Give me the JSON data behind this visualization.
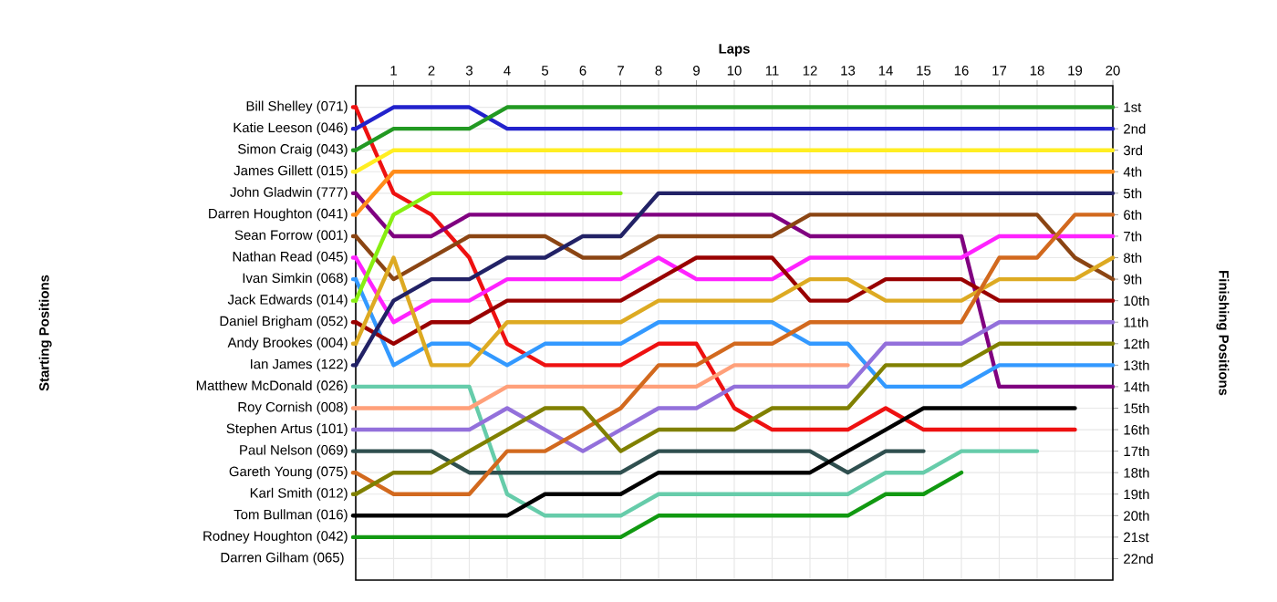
{
  "chart_data": {
    "type": "line",
    "xlabel": "Laps",
    "legend_title": "Starting Positions",
    "ylabel": "Finishing Positions",
    "legend": "left",
    "x": [
      0,
      1,
      2,
      3,
      4,
      5,
      6,
      7,
      8,
      9,
      10,
      11,
      12,
      13,
      14,
      15,
      16,
      17,
      18,
      19,
      20
    ],
    "xlim": [
      0,
      20
    ],
    "xticks": [
      1,
      2,
      3,
      4,
      5,
      6,
      7,
      8,
      9,
      10,
      11,
      12,
      13,
      14,
      15,
      16,
      17,
      18,
      19,
      20
    ],
    "ylim": [
      23,
      0
    ],
    "yticks": [
      {
        "value": 1,
        "label": "1st"
      },
      {
        "value": 2,
        "label": "2nd"
      },
      {
        "value": 3,
        "label": "3rd"
      },
      {
        "value": 4,
        "label": "4th"
      },
      {
        "value": 5,
        "label": "5th"
      },
      {
        "value": 6,
        "label": "6th"
      },
      {
        "value": 7,
        "label": "7th"
      },
      {
        "value": 8,
        "label": "8th"
      },
      {
        "value": 9,
        "label": "9th"
      },
      {
        "value": 10,
        "label": "10th"
      },
      {
        "value": 11,
        "label": "11th"
      },
      {
        "value": 12,
        "label": "12th"
      },
      {
        "value": 13,
        "label": "13th"
      },
      {
        "value": 14,
        "label": "14th"
      },
      {
        "value": 15,
        "label": "15th"
      },
      {
        "value": 16,
        "label": "16th"
      },
      {
        "value": 17,
        "label": "17th"
      },
      {
        "value": 18,
        "label": "18th"
      },
      {
        "value": 19,
        "label": "19th"
      },
      {
        "value": 20,
        "label": "20th"
      },
      {
        "value": 21,
        "label": "21st"
      },
      {
        "value": 22,
        "label": "22nd"
      }
    ],
    "grid": true,
    "annotations": [
      "Darren Gilham (065)"
    ],
    "series": [
      {
        "name": "Bill Shelley (071)",
        "color": "#ee1111",
        "values": [
          1,
          5,
          6,
          8,
          12,
          13,
          13,
          13,
          12,
          12,
          15,
          16,
          16,
          16,
          15,
          16,
          16,
          16,
          16,
          16,
          null
        ]
      },
      {
        "name": "Katie Leeson (046)",
        "color": "#2222cc",
        "values": [
          2,
          1,
          1,
          1,
          2,
          2,
          2,
          2,
          2,
          2,
          2,
          2,
          2,
          2,
          2,
          2,
          2,
          2,
          2,
          2,
          2
        ]
      },
      {
        "name": "Simon Craig (043)",
        "color": "#229922",
        "values": [
          3,
          2,
          2,
          2,
          1,
          1,
          1,
          1,
          1,
          1,
          1,
          1,
          1,
          1,
          1,
          1,
          1,
          1,
          1,
          1,
          1
        ]
      },
      {
        "name": "James Gillett (015)",
        "color": "#ffee22",
        "values": [
          4,
          3,
          3,
          3,
          3,
          3,
          3,
          3,
          3,
          3,
          3,
          3,
          3,
          3,
          3,
          3,
          3,
          3,
          3,
          3,
          3
        ]
      },
      {
        "name": "John Gladwin (777)",
        "color": "#800080",
        "values": [
          5,
          7,
          7,
          6,
          6,
          6,
          6,
          6,
          6,
          6,
          6,
          6,
          7,
          7,
          7,
          7,
          7,
          14,
          14,
          14,
          14
        ]
      },
      {
        "name": "Darren Houghton (041)",
        "color": "#ff8c1a",
        "values": [
          6,
          4,
          4,
          4,
          4,
          4,
          4,
          4,
          4,
          4,
          4,
          4,
          4,
          4,
          4,
          4,
          4,
          4,
          4,
          4,
          4
        ]
      },
      {
        "name": "Sean Forrow (001)",
        "color": "#8b4513",
        "values": [
          7,
          9,
          8,
          7,
          7,
          7,
          8,
          8,
          7,
          7,
          7,
          7,
          6,
          6,
          6,
          6,
          6,
          6,
          6,
          8,
          9
        ]
      },
      {
        "name": "Nathan Read (045)",
        "color": "#ff22ff",
        "values": [
          8,
          11,
          10,
          10,
          9,
          9,
          9,
          9,
          8,
          9,
          9,
          9,
          8,
          8,
          8,
          8,
          8,
          7,
          7,
          7,
          7
        ]
      },
      {
        "name": "Ivan Simkin (068)",
        "color": "#3399ff",
        "values": [
          9,
          13,
          12,
          12,
          13,
          12,
          12,
          12,
          11,
          11,
          11,
          11,
          12,
          12,
          14,
          14,
          14,
          13,
          13,
          13,
          13
        ]
      },
      {
        "name": "Jack Edwards (014)",
        "color": "#88ee11",
        "values": [
          10,
          6,
          5,
          5,
          5,
          5,
          5,
          5,
          null,
          null,
          null,
          null,
          null,
          null,
          null,
          null,
          null,
          null,
          null,
          null,
          null
        ]
      },
      {
        "name": "Daniel Brigham (052)",
        "color": "#990000",
        "values": [
          11,
          12,
          11,
          11,
          10,
          10,
          10,
          10,
          9,
          8,
          8,
          8,
          10,
          10,
          9,
          9,
          9,
          10,
          10,
          10,
          10
        ]
      },
      {
        "name": "Andy Brookes (004)",
        "color": "#ddaa22",
        "values": [
          12,
          8,
          13,
          13,
          11,
          11,
          11,
          11,
          10,
          10,
          10,
          10,
          9,
          9,
          10,
          10,
          10,
          9,
          9,
          9,
          8
        ]
      },
      {
        "name": "Ian James (122)",
        "color": "#222266",
        "values": [
          13,
          10,
          9,
          9,
          8,
          8,
          7,
          7,
          5,
          5,
          5,
          5,
          5,
          5,
          5,
          5,
          5,
          5,
          5,
          5,
          5
        ]
      },
      {
        "name": "Matthew McDonald (026)",
        "color": "#66ccaa",
        "values": [
          14,
          14,
          14,
          14,
          19,
          20,
          20,
          20,
          19,
          19,
          19,
          19,
          19,
          19,
          18,
          18,
          17,
          17,
          17,
          null,
          null
        ]
      },
      {
        "name": "Roy Cornish (008)",
        "color": "#ffa07a",
        "values": [
          15,
          15,
          15,
          15,
          14,
          14,
          14,
          14,
          14,
          14,
          13,
          13,
          13,
          13,
          null,
          null,
          null,
          null,
          null,
          null,
          null
        ]
      },
      {
        "name": "Stephen Artus (101)",
        "color": "#9370db",
        "values": [
          16,
          16,
          16,
          16,
          15,
          16,
          17,
          16,
          15,
          15,
          14,
          14,
          14,
          14,
          12,
          12,
          12,
          11,
          11,
          11,
          11
        ]
      },
      {
        "name": "Paul Nelson (069)",
        "color": "#2f4f4f",
        "values": [
          17,
          17,
          17,
          18,
          18,
          18,
          18,
          18,
          17,
          17,
          17,
          17,
          17,
          18,
          17,
          17,
          null,
          null,
          null,
          null,
          null
        ]
      },
      {
        "name": "Gareth Young (075)",
        "color": "#d2691e",
        "values": [
          18,
          19,
          19,
          19,
          17,
          17,
          16,
          15,
          13,
          13,
          12,
          12,
          11,
          11,
          11,
          11,
          11,
          8,
          8,
          6,
          6
        ]
      },
      {
        "name": "Karl Smith (012)",
        "color": "#808000",
        "values": [
          19,
          18,
          18,
          17,
          16,
          15,
          15,
          17,
          16,
          16,
          16,
          15,
          15,
          15,
          13,
          13,
          13,
          12,
          12,
          12,
          12
        ]
      },
      {
        "name": "Tom Bullman (016)",
        "color": "#000000",
        "values": [
          20,
          20,
          20,
          20,
          20,
          19,
          19,
          19,
          18,
          18,
          18,
          18,
          18,
          17,
          16,
          15,
          15,
          15,
          15,
          15,
          null
        ]
      },
      {
        "name": "Rodney Houghton (042)",
        "color": "#119911",
        "values": [
          21,
          21,
          21,
          21,
          21,
          21,
          21,
          21,
          20,
          20,
          20,
          20,
          20,
          20,
          19,
          19,
          18,
          null,
          null,
          null,
          null
        ]
      }
    ]
  }
}
